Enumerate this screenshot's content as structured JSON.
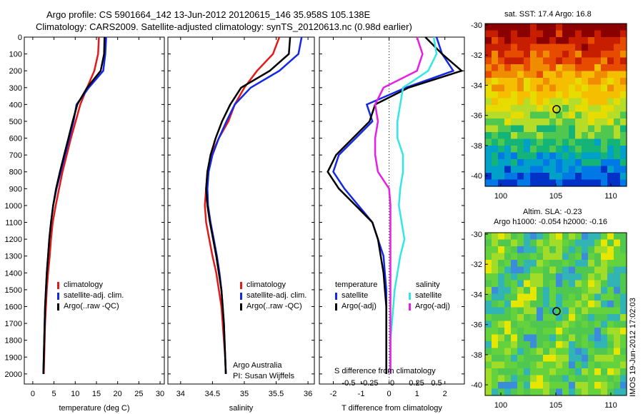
{
  "header": {
    "line1": "Argo profile: CS 5901664_142 13-Jun-2012 20120615_146 35.958S 105.138E",
    "line2": "Climatology: CARS2009. Satellite-adjusted climatology: synTS_20120613.nc (0.98d earlier)"
  },
  "colors": {
    "climatology": "#e31a1a",
    "satellite": "#1428e6",
    "argo": "#000000",
    "sal_sat": "#33e6e6",
    "sal_argo": "#e61ee6"
  },
  "panels": {
    "temperature": {
      "xlabel": "temperature (deg C)",
      "xticks": [
        "0",
        "5",
        "10",
        "15",
        "20",
        "25",
        "30"
      ],
      "legend": [
        "climatology",
        "satellite-adj. clim.",
        "Argo(..raw -QC)"
      ]
    },
    "salinity": {
      "xlabel": "salinity",
      "xticks": [
        "34",
        "34.5",
        "35",
        "35.5",
        "36"
      ],
      "legend": [
        "climatology",
        "satellite-adj. clim.",
        "Argo(..raw -QC)"
      ],
      "note1": "Argo Australia",
      "note2": "PI: Susan Wijffels"
    },
    "difference": {
      "xlabel": "T difference from climatology",
      "top_label": "S difference from climatology",
      "xticks": [
        "-2",
        "-1",
        "0",
        "1",
        "2"
      ],
      "sticks": [
        "-0.5",
        "-0.25",
        "0",
        "0.25",
        "0.5"
      ],
      "legend_t_title": "temperature",
      "legend_s_title": "salinity",
      "legend_t": [
        "satellite",
        "Argo(-adj)"
      ],
      "legend_s": [
        "satellite",
        "Argo(-adj)"
      ]
    }
  },
  "depth_ticks": [
    "0",
    "100",
    "200",
    "300",
    "400",
    "500",
    "600",
    "700",
    "800",
    "900",
    "1000",
    "1100",
    "1200",
    "1300",
    "1400",
    "1500",
    "1600",
    "1700",
    "1800",
    "1900",
    "2000"
  ],
  "maps": {
    "sst_title": "sat. SST: 17.4 Argo: 16.8",
    "sla_title1": "Altim. SLA: -0.23",
    "sla_title2": "Argo h1000: -0.054 h2000: -0.16",
    "yticks": [
      "-30",
      "-32",
      "-34",
      "-36",
      "-38",
      "-40"
    ],
    "xticks": [
      "100",
      "105",
      "110"
    ],
    "footer": "IMOS 19-Jun-2012 17:02:03"
  },
  "chart_data": [
    {
      "type": "line",
      "xlabel": "temperature (deg C)",
      "ylabel": "",
      "xlim": [
        -2,
        31
      ],
      "ylim": [
        2060,
        0
      ],
      "series": [
        {
          "name": "climatology",
          "x": [
            15.6,
            15.4,
            14.5,
            12.8,
            11.2,
            10.1,
            9.0,
            8.0,
            7.0,
            6.2,
            5.4,
            4.7,
            4.3,
            4.0,
            3.6,
            3.3,
            3.1,
            2.9,
            2.8,
            2.7,
            2.6
          ],
          "y": [
            0,
            100,
            200,
            300,
            400,
            500,
            600,
            700,
            800,
            900,
            1000,
            1100,
            1200,
            1300,
            1400,
            1500,
            1600,
            1700,
            1800,
            1900,
            2000
          ]
        },
        {
          "name": "satellite-adj. clim.",
          "x": [
            17.3,
            17.1,
            16.6,
            13.2,
            10.3,
            9.6,
            8.6,
            7.6,
            6.6,
            5.6,
            4.8,
            4.3,
            3.9,
            3.6,
            3.3,
            3.1,
            2.9,
            2.8,
            2.7,
            2.6,
            2.5
          ],
          "y": [
            0,
            100,
            200,
            300,
            400,
            500,
            600,
            700,
            800,
            900,
            1000,
            1100,
            1200,
            1300,
            1400,
            1500,
            1600,
            1700,
            1800,
            1900,
            2000
          ]
        },
        {
          "name": "Argo(..raw -QC)",
          "x": [
            16.9,
            16.8,
            16.0,
            12.8,
            10.5,
            9.4,
            8.4,
            7.4,
            6.4,
            5.5,
            4.8,
            4.3,
            3.9,
            3.6,
            3.3,
            3.1,
            2.9,
            2.8,
            2.7,
            2.6,
            2.5
          ],
          "y": [
            0,
            100,
            200,
            300,
            400,
            500,
            600,
            700,
            800,
            900,
            1000,
            1100,
            1200,
            1300,
            1400,
            1500,
            1600,
            1700,
            1800,
            1900,
            2000
          ]
        }
      ]
    },
    {
      "type": "line",
      "xlabel": "salinity",
      "ylabel": "",
      "xlim": [
        33.8,
        36.1
      ],
      "ylim": [
        2060,
        0
      ],
      "series": [
        {
          "name": "climatology",
          "x": [
            35.55,
            35.45,
            35.2,
            35.0,
            34.85,
            34.75,
            34.6,
            34.48,
            34.42,
            34.4,
            34.38,
            34.4,
            34.45,
            34.5,
            34.56,
            34.6,
            34.64,
            34.66,
            34.68,
            34.7,
            34.71
          ],
          "y": [
            0,
            100,
            200,
            300,
            400,
            500,
            600,
            700,
            800,
            900,
            1000,
            1100,
            1200,
            1300,
            1400,
            1500,
            1600,
            1700,
            1800,
            1900,
            2000
          ]
        },
        {
          "name": "satellite-adj. clim.",
          "x": [
            35.9,
            35.85,
            35.55,
            35.1,
            34.85,
            34.72,
            34.6,
            34.5,
            34.44,
            34.42,
            34.43,
            34.47,
            34.52,
            34.57,
            34.61,
            34.64,
            34.66,
            34.68,
            34.69,
            34.7,
            34.71
          ],
          "y": [
            0,
            100,
            200,
            300,
            400,
            500,
            600,
            700,
            800,
            900,
            1000,
            1100,
            1200,
            1300,
            1400,
            1500,
            1600,
            1700,
            1800,
            1900,
            2000
          ]
        },
        {
          "name": "Argo(..raw -QC)",
          "x": [
            35.72,
            35.7,
            35.4,
            34.95,
            34.78,
            34.65,
            34.55,
            34.47,
            34.42,
            34.4,
            34.42,
            34.46,
            34.51,
            34.56,
            34.6,
            34.64,
            34.66,
            34.68,
            34.69,
            34.7,
            34.71
          ],
          "y": [
            0,
            100,
            200,
            300,
            400,
            500,
            600,
            700,
            800,
            900,
            1000,
            1100,
            1200,
            1300,
            1400,
            1500,
            1600,
            1700,
            1800,
            1900,
            2000
          ]
        }
      ]
    },
    {
      "type": "line",
      "xlabel": "T difference from climatology",
      "ylabel": "",
      "xlim": [
        -2.5,
        2.7
      ],
      "ylim": [
        2060,
        0
      ],
      "series": [
        {
          "name": "temperature satellite",
          "x": [
            1.7,
            1.9,
            2.3,
            0.6,
            -0.8,
            -0.6,
            -1.2,
            -1.8,
            -2.0,
            -1.6,
            -1.1,
            -0.6,
            -0.4,
            -0.2,
            -0.15,
            -0.1,
            -0.1,
            -0.1,
            -0.1,
            -0.1,
            -0.1
          ],
          "y": [
            0,
            100,
            200,
            300,
            400,
            500,
            600,
            700,
            800,
            900,
            1000,
            1100,
            1200,
            1300,
            1400,
            1500,
            1600,
            1700,
            1800,
            1900,
            2000
          ]
        },
        {
          "name": "temperature Argo(-adj)",
          "x": [
            1.3,
            1.9,
            2.6,
            0.7,
            -0.5,
            -0.7,
            -1.3,
            -1.9,
            -2.2,
            -1.8,
            -1.2,
            -0.6,
            -0.4,
            -0.3,
            -0.2,
            -0.15,
            -0.1,
            -0.1,
            -0.1,
            -0.1,
            -0.1
          ],
          "y": [
            0,
            100,
            200,
            300,
            400,
            500,
            600,
            700,
            800,
            900,
            1000,
            1100,
            1200,
            1300,
            1400,
            1500,
            1600,
            1700,
            1800,
            1900,
            2000
          ]
        },
        {
          "name": "salinity satellite",
          "x": [
            1.6,
            1.7,
            1.4,
            0.5,
            0.4,
            0.3,
            0.3,
            0.5,
            0.5,
            0.4,
            0.35,
            0.45,
            0.55,
            0.4,
            0.3,
            0.2,
            0.15,
            0.1,
            0.05,
            0.05,
            0.05
          ],
          "y": [
            0,
            100,
            200,
            300,
            400,
            500,
            600,
            700,
            800,
            900,
            1000,
            1100,
            1200,
            1300,
            1400,
            1500,
            1600,
            1700,
            1800,
            1900,
            2000
          ]
        },
        {
          "name": "salinity Argo(-adj)",
          "x": [
            1.0,
            1.2,
            1.0,
            -0.2,
            -0.5,
            -0.4,
            -0.5,
            -0.5,
            -0.4,
            0.0,
            0.05,
            0.05,
            0.05,
            0.05,
            0.05,
            0.05,
            0.05,
            0.05,
            0.05,
            0.05,
            0.05
          ],
          "y": [
            0,
            100,
            200,
            300,
            400,
            500,
            600,
            700,
            800,
            900,
            1000,
            1100,
            1200,
            1300,
            1400,
            1500,
            1600,
            1700,
            1800,
            1900,
            2000
          ]
        }
      ]
    }
  ]
}
